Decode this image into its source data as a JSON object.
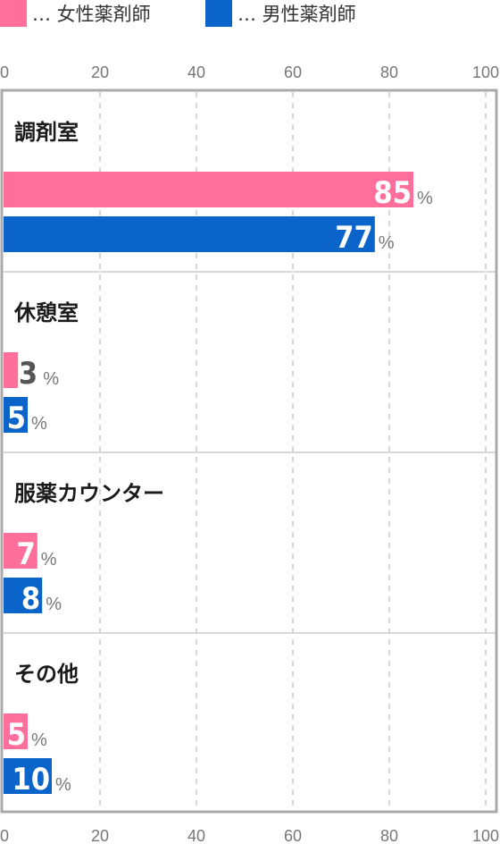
{
  "colors": {
    "female": "#ff6f9c",
    "male": "#0b64c9",
    "frame": "#aaaaaa",
    "grid": "#c8c8c8",
    "divider": "#cccccc"
  },
  "legend": {
    "female": {
      "label": "… 女性薬剤師",
      "color": "#ff6f9c"
    },
    "male": {
      "label": "… 男性薬剤師",
      "color": "#0b64c9"
    }
  },
  "chart_data": {
    "type": "bar",
    "orientation": "horizontal",
    "categories": [
      "調剤室",
      "休憩室",
      "服薬カウンター",
      "その他"
    ],
    "series": [
      {
        "name": "女性薬剤師",
        "color": "#ff6f9c",
        "values": [
          85,
          3,
          7,
          5
        ]
      },
      {
        "name": "男性薬剤師",
        "color": "#0b64c9",
        "values": [
          77,
          5,
          8,
          10
        ]
      }
    ],
    "unit": "%",
    "xlim": [
      0,
      100
    ],
    "xticks": [
      "0",
      "20",
      "40",
      "60",
      "80",
      "100"
    ],
    "grid": true,
    "legend_position": "top-left"
  }
}
